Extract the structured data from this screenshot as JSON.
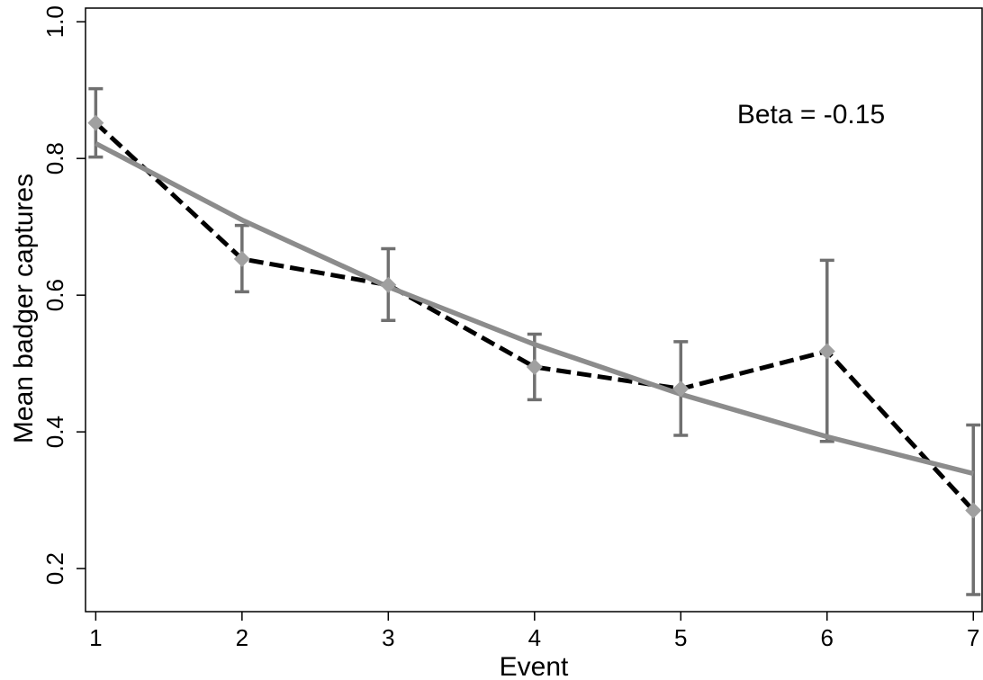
{
  "chart_data": {
    "type": "line",
    "xlabel": "Event",
    "ylabel": "Mean badger captures",
    "annotation": "Beta = -0.15",
    "xlim": [
      0.93,
      7.06
    ],
    "ylim": [
      0.137,
      1.02
    ],
    "x_ticks": [
      1,
      2,
      3,
      4,
      5,
      6,
      7
    ],
    "y_ticks": [
      0.2,
      0.4,
      0.6,
      0.8,
      1.0
    ],
    "y_tick_labels": [
      "0.2",
      "0.4",
      "0.6",
      "0.8",
      "1.0"
    ],
    "grid": false,
    "series": [
      {
        "style": "dashed",
        "color": "#000000",
        "marker": "diamond",
        "marker_color": "#a0a0a0",
        "x": [
          1,
          2,
          3,
          4,
          5,
          6,
          7
        ],
        "y": [
          0.852,
          0.653,
          0.615,
          0.495,
          0.463,
          0.518,
          0.285
        ],
        "error_low": [
          0.802,
          0.605,
          0.563,
          0.447,
          0.395,
          0.386,
          0.162
        ],
        "error_high": [
          0.902,
          0.702,
          0.668,
          0.543,
          0.532,
          0.651,
          0.41
        ],
        "error_color": "#707070"
      },
      {
        "style": "solid",
        "color": "#8c8c8c",
        "x": [
          1,
          2,
          3,
          4,
          5,
          6,
          7
        ],
        "y": [
          0.822,
          0.71,
          0.612,
          0.528,
          0.455,
          0.393,
          0.339
        ]
      }
    ]
  }
}
